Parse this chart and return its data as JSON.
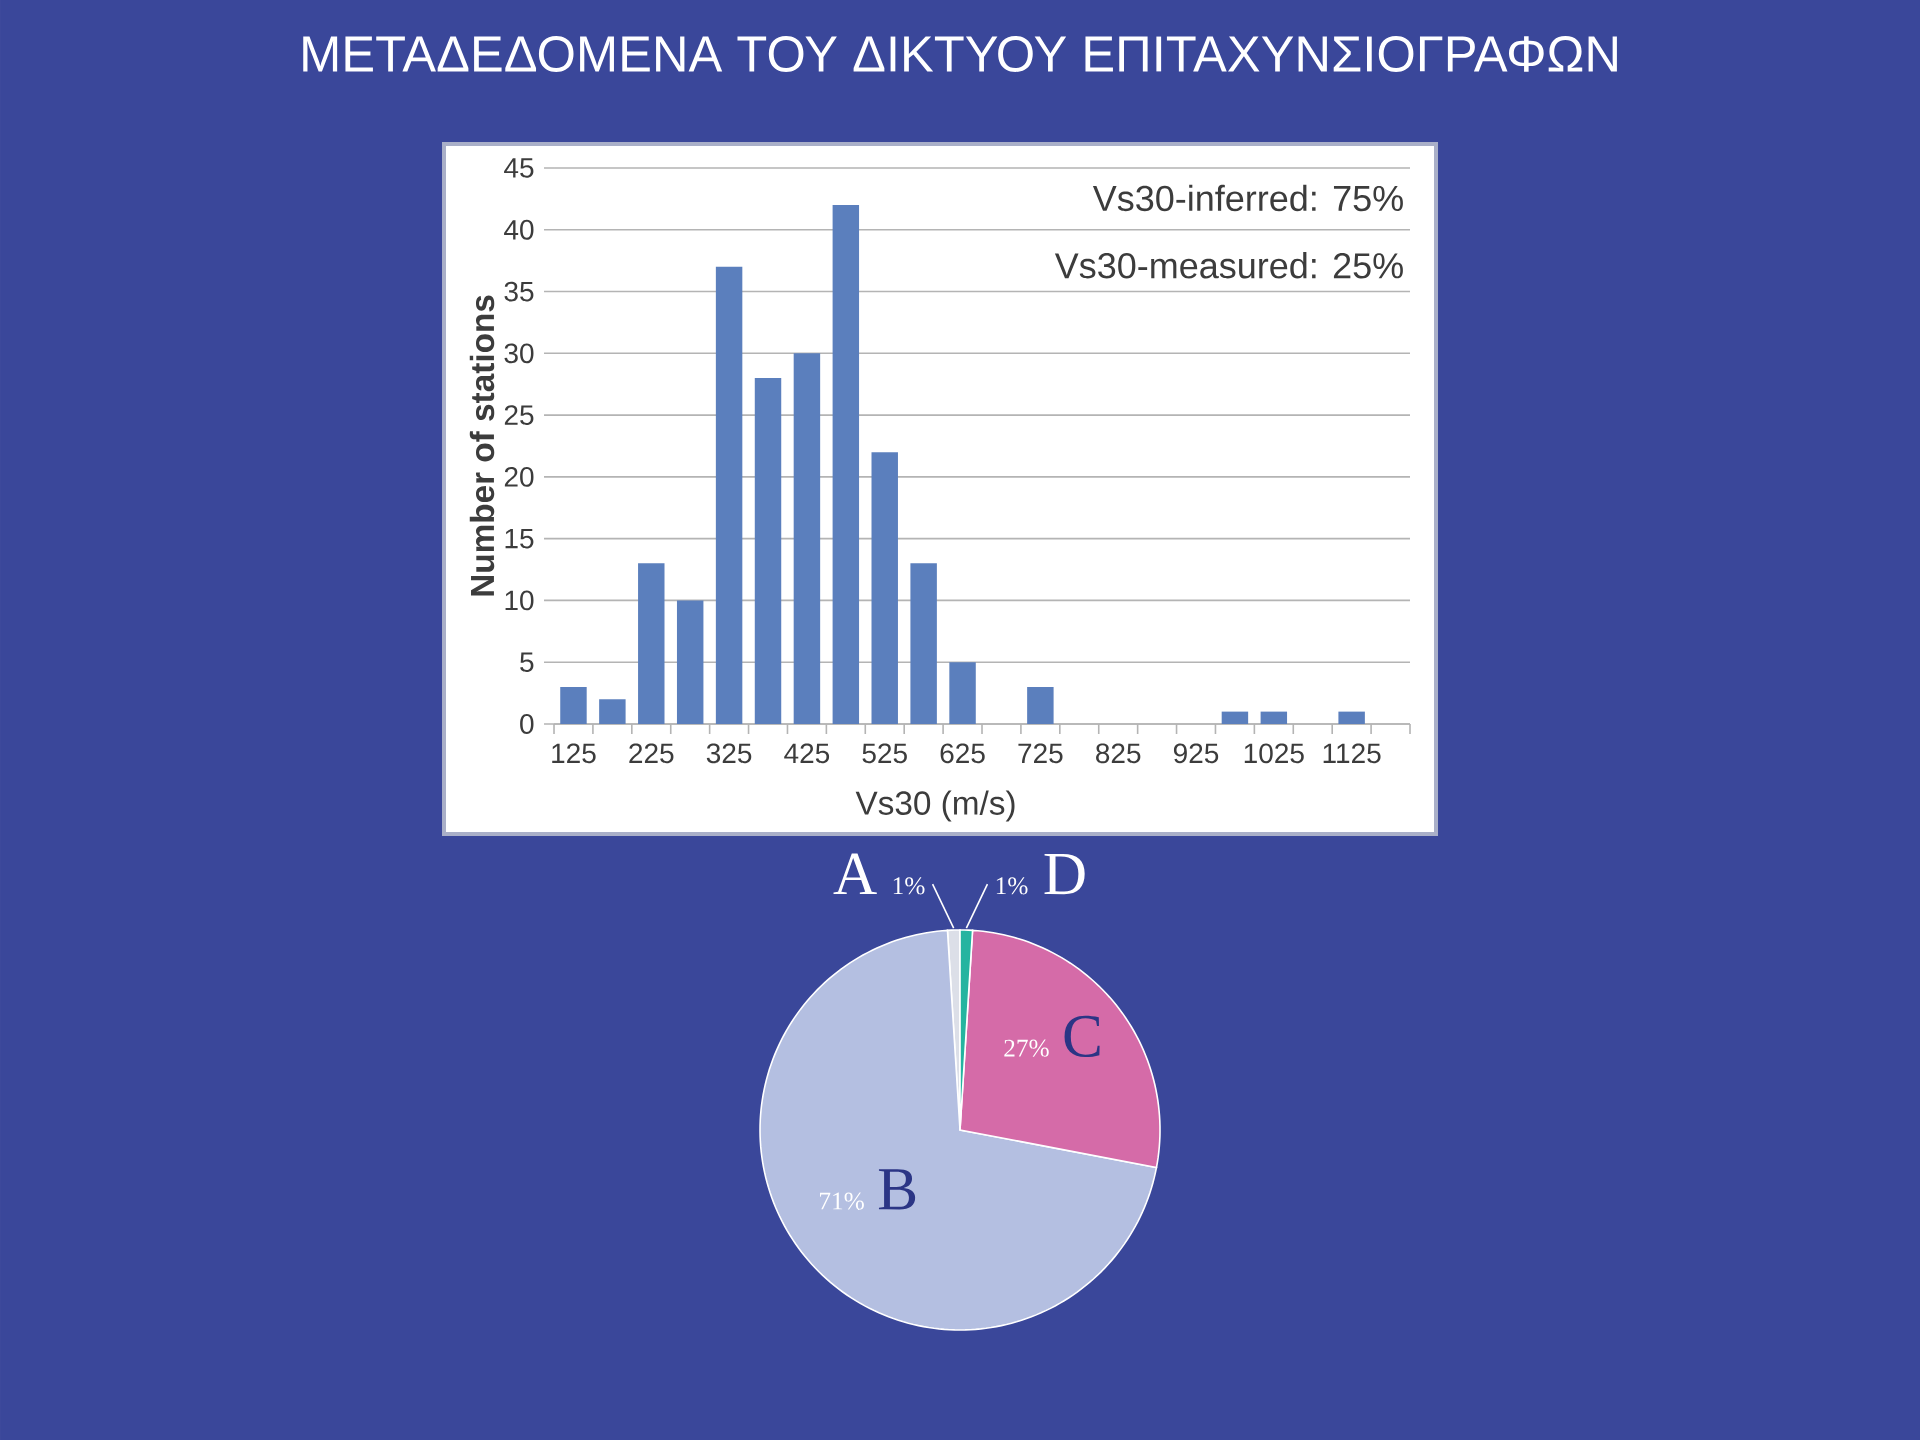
{
  "chart_data": [
    {
      "type": "bar",
      "title": "ΜΕΤΑΔΕΔΟΜΕΝΑ ΤΟΥ ΔΙΚΤΥΟΥ ΕΠΙΤΑΧΥΝΣΙΟΓΡΑΦΩΝ",
      "xlabel": "Vs30 (m/s)",
      "ylabel": "Number of stations",
      "categories": [
        "125",
        null,
        "225",
        null,
        "325",
        null,
        "425",
        null,
        "525",
        null,
        "625",
        null,
        "725",
        null,
        "825",
        null,
        "925",
        null,
        "1025",
        null,
        "1125",
        null
      ],
      "values": [
        3,
        2,
        13,
        10,
        37,
        28,
        30,
        42,
        22,
        13,
        5,
        0,
        3,
        0,
        0,
        0,
        0,
        1,
        1,
        0,
        1,
        0
      ],
      "color": "#5b7fbd",
      "ylim": [
        0,
        45
      ],
      "yticks": [
        0,
        5,
        10,
        15,
        20,
        25,
        30,
        35,
        40,
        45
      ],
      "grid": "y",
      "annotations": [
        "Vs30-inferred: 75%",
        "Vs30-measured: 25%"
      ]
    },
    {
      "type": "pie",
      "categories": [
        "A",
        "B",
        "C",
        "D"
      ],
      "values": [
        1,
        71,
        27,
        1
      ],
      "colors": [
        "#dcdfe8",
        "#b4bfe1",
        "#d56ba8",
        "#25b4a0"
      ],
      "value_labels": [
        "1%",
        "71%",
        "27%",
        "1%"
      ]
    }
  ]
}
